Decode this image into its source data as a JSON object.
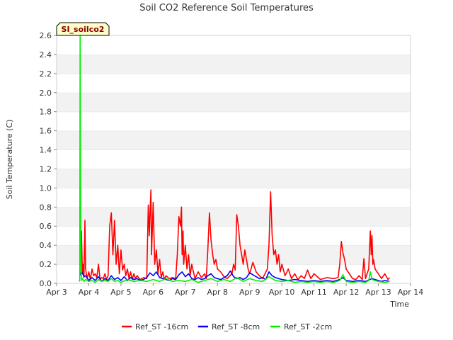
{
  "chart_data": {
    "type": "line",
    "title": "Soil CO2 Reference Soil Temperatures",
    "xlabel": "Time",
    "ylabel": "Soil Temperature (C)",
    "site_label": "SI_soilco2",
    "xlim": [
      3,
      14
    ],
    "ylim": [
      0,
      2.6
    ],
    "x_ticks": [
      {
        "v": 3,
        "label": "Apr 3"
      },
      {
        "v": 4,
        "label": "Apr 4"
      },
      {
        "v": 5,
        "label": "Apr 5"
      },
      {
        "v": 6,
        "label": "Apr 6"
      },
      {
        "v": 7,
        "label": "Apr 7"
      },
      {
        "v": 8,
        "label": "Apr 8"
      },
      {
        "v": 9,
        "label": "Apr 9"
      },
      {
        "v": 10,
        "label": "Apr 10"
      },
      {
        "v": 11,
        "label": "Apr 11"
      },
      {
        "v": 12,
        "label": "Apr 12"
      },
      {
        "v": 13,
        "label": "Apr 13"
      },
      {
        "v": 14,
        "label": "Apr 14"
      }
    ],
    "y_ticks": [
      {
        "v": 0.0,
        "label": "0.0"
      },
      {
        "v": 0.2,
        "label": "0.2"
      },
      {
        "v": 0.4,
        "label": "0.4"
      },
      {
        "v": 0.6,
        "label": "0.6"
      },
      {
        "v": 0.8,
        "label": "0.8"
      },
      {
        "v": 1.0,
        "label": "1.0"
      },
      {
        "v": 1.2,
        "label": "1.2"
      },
      {
        "v": 1.4,
        "label": "1.4"
      },
      {
        "v": 1.6,
        "label": "1.6"
      },
      {
        "v": 1.8,
        "label": "1.8"
      },
      {
        "v": 2.0,
        "label": "2.0"
      },
      {
        "v": 2.2,
        "label": "2.2"
      },
      {
        "v": 2.4,
        "label": "2.4"
      },
      {
        "v": 2.6,
        "label": "2.6"
      }
    ],
    "legend_position": "bottom-center",
    "series": [
      {
        "name": "Ref_ST -16cm",
        "color": "#ff0000",
        "x": [
          3.73,
          3.75,
          3.77,
          3.8,
          3.83,
          3.85,
          3.88,
          3.9,
          3.95,
          4.0,
          4.05,
          4.1,
          4.15,
          4.2,
          4.25,
          4.3,
          4.35,
          4.4,
          4.45,
          4.5,
          4.55,
          4.6,
          4.65,
          4.7,
          4.75,
          4.8,
          4.85,
          4.9,
          4.95,
          5.0,
          5.05,
          5.1,
          5.15,
          5.2,
          5.25,
          5.3,
          5.35,
          5.4,
          5.45,
          5.5,
          5.6,
          5.7,
          5.8,
          5.85,
          5.88,
          5.9,
          5.93,
          5.95,
          6.0,
          6.05,
          6.1,
          6.15,
          6.2,
          6.25,
          6.3,
          6.35,
          6.4,
          6.5,
          6.6,
          6.7,
          6.75,
          6.8,
          6.85,
          6.88,
          6.9,
          6.93,
          6.95,
          7.0,
          7.05,
          7.1,
          7.15,
          7.2,
          7.3,
          7.4,
          7.5,
          7.6,
          7.65,
          7.7,
          7.75,
          7.8,
          7.85,
          7.9,
          7.95,
          8.0,
          8.1,
          8.2,
          8.3,
          8.45,
          8.5,
          8.55,
          8.6,
          8.65,
          8.7,
          8.75,
          8.8,
          8.85,
          8.9,
          8.95,
          9.0,
          9.1,
          9.2,
          9.3,
          9.4,
          9.55,
          9.6,
          9.65,
          9.7,
          9.75,
          9.8,
          9.85,
          9.9,
          9.95,
          10.0,
          10.1,
          10.2,
          10.3,
          10.4,
          10.5,
          10.6,
          10.7,
          10.8,
          10.9,
          11.0,
          11.2,
          11.4,
          11.6,
          11.75,
          11.8,
          11.85,
          11.9,
          11.95,
          12.0,
          12.1,
          12.2,
          12.3,
          12.4,
          12.5,
          12.55,
          12.6,
          12.7,
          12.75,
          12.78,
          12.8,
          12.83,
          12.85,
          12.9,
          13.0,
          13.1,
          13.2,
          13.3,
          13.35
        ],
        "values": [
          0.8,
          0.3,
          0.55,
          0.1,
          0.2,
          0.06,
          0.66,
          0.15,
          0.05,
          0.12,
          0.04,
          0.15,
          0.08,
          0.1,
          0.06,
          0.2,
          0.04,
          0.06,
          0.05,
          0.1,
          0.04,
          0.08,
          0.6,
          0.74,
          0.3,
          0.66,
          0.2,
          0.4,
          0.1,
          0.35,
          0.14,
          0.2,
          0.08,
          0.15,
          0.05,
          0.12,
          0.04,
          0.1,
          0.05,
          0.08,
          0.04,
          0.06,
          0.05,
          0.82,
          0.5,
          0.7,
          0.98,
          0.3,
          0.85,
          0.2,
          0.35,
          0.1,
          0.25,
          0.06,
          0.12,
          0.04,
          0.08,
          0.05,
          0.06,
          0.05,
          0.3,
          0.7,
          0.6,
          0.8,
          0.3,
          0.55,
          0.2,
          0.4,
          0.15,
          0.3,
          0.08,
          0.2,
          0.05,
          0.12,
          0.06,
          0.1,
          0.05,
          0.35,
          0.74,
          0.45,
          0.3,
          0.2,
          0.25,
          0.15,
          0.12,
          0.07,
          0.05,
          0.1,
          0.2,
          0.14,
          0.72,
          0.6,
          0.4,
          0.3,
          0.2,
          0.35,
          0.25,
          0.15,
          0.1,
          0.22,
          0.12,
          0.08,
          0.05,
          0.15,
          0.4,
          0.96,
          0.5,
          0.3,
          0.35,
          0.2,
          0.3,
          0.12,
          0.2,
          0.08,
          0.15,
          0.05,
          0.1,
          0.04,
          0.08,
          0.05,
          0.14,
          0.05,
          0.1,
          0.04,
          0.06,
          0.05,
          0.06,
          0.2,
          0.44,
          0.32,
          0.25,
          0.15,
          0.1,
          0.05,
          0.04,
          0.08,
          0.04,
          0.26,
          0.05,
          0.15,
          0.55,
          0.3,
          0.5,
          0.2,
          0.25,
          0.15,
          0.1,
          0.05,
          0.1,
          0.04,
          0.06
        ]
      },
      {
        "name": "Ref_ST -8cm",
        "color": "#0000ff",
        "x": [
          3.73,
          3.75,
          3.8,
          3.85,
          3.9,
          4.0,
          4.1,
          4.2,
          4.3,
          4.4,
          4.5,
          4.6,
          4.7,
          4.8,
          4.9,
          5.0,
          5.1,
          5.2,
          5.3,
          5.4,
          5.5,
          5.6,
          5.7,
          5.8,
          5.9,
          6.0,
          6.1,
          6.2,
          6.3,
          6.4,
          6.5,
          6.6,
          6.7,
          6.8,
          6.9,
          7.0,
          7.1,
          7.2,
          7.3,
          7.4,
          7.5,
          7.6,
          7.7,
          7.8,
          7.9,
          8.0,
          8.1,
          8.2,
          8.3,
          8.4,
          8.5,
          8.6,
          8.7,
          8.8,
          8.9,
          9.0,
          9.1,
          9.2,
          9.3,
          9.4,
          9.5,
          9.6,
          9.7,
          9.8,
          9.9,
          10.0,
          10.2,
          10.4,
          10.6,
          10.8,
          11.0,
          11.2,
          11.4,
          11.6,
          11.8,
          11.9,
          12.0,
          12.2,
          12.4,
          12.6,
          12.8,
          12.9,
          13.0,
          13.1,
          13.2,
          13.35
        ],
        "values": [
          0.12,
          0.09,
          0.11,
          0.07,
          0.08,
          0.03,
          0.06,
          0.03,
          0.07,
          0.02,
          0.05,
          0.03,
          0.08,
          0.04,
          0.06,
          0.03,
          0.07,
          0.03,
          0.06,
          0.04,
          0.05,
          0.03,
          0.04,
          0.06,
          0.11,
          0.08,
          0.12,
          0.06,
          0.05,
          0.04,
          0.03,
          0.05,
          0.04,
          0.09,
          0.12,
          0.07,
          0.1,
          0.05,
          0.04,
          0.06,
          0.04,
          0.05,
          0.08,
          0.1,
          0.06,
          0.05,
          0.04,
          0.06,
          0.08,
          0.13,
          0.07,
          0.05,
          0.06,
          0.04,
          0.06,
          0.11,
          0.09,
          0.07,
          0.05,
          0.06,
          0.04,
          0.12,
          0.08,
          0.06,
          0.05,
          0.04,
          0.03,
          0.04,
          0.03,
          0.02,
          0.03,
          0.02,
          0.03,
          0.02,
          0.04,
          0.06,
          0.03,
          0.02,
          0.03,
          0.02,
          0.05,
          0.04,
          0.03,
          0.02,
          0.03,
          0.02
        ]
      },
      {
        "name": "Ref_ST -2cm",
        "color": "#00ee00",
        "x": [
          3.7,
          3.72,
          3.73,
          3.74,
          3.75,
          3.76,
          3.78,
          3.8,
          3.85,
          3.9,
          4.0,
          4.1,
          4.2,
          4.3,
          4.4,
          4.5,
          4.6,
          4.7,
          4.8,
          4.9,
          5.0,
          5.2,
          5.4,
          5.6,
          5.8,
          6.0,
          6.2,
          6.4,
          6.6,
          6.8,
          7.0,
          7.2,
          7.4,
          7.6,
          7.8,
          8.0,
          8.2,
          8.4,
          8.6,
          8.8,
          9.0,
          9.2,
          9.4,
          9.6,
          9.8,
          10.0,
          10.2,
          10.4,
          10.6,
          10.8,
          11.0,
          11.2,
          11.4,
          11.6,
          11.8,
          11.9,
          12.0,
          12.2,
          12.4,
          12.6,
          12.7,
          12.75,
          12.8,
          13.0,
          13.2,
          13.35
        ],
        "values": [
          0.02,
          0.03,
          2.6,
          1.5,
          0.5,
          0.12,
          0.03,
          0.05,
          0.02,
          0.04,
          0.02,
          0.03,
          0.01,
          0.04,
          0.02,
          0.03,
          0.02,
          0.05,
          0.02,
          0.03,
          0.01,
          0.04,
          0.02,
          0.03,
          0.02,
          0.04,
          0.02,
          0.05,
          0.02,
          0.03,
          0.02,
          0.04,
          0.01,
          0.03,
          0.05,
          0.02,
          0.04,
          0.02,
          0.06,
          0.02,
          0.05,
          0.03,
          0.02,
          0.07,
          0.03,
          0.02,
          0.03,
          0.01,
          0.02,
          0.01,
          0.02,
          0.01,
          0.02,
          0.01,
          0.03,
          0.09,
          0.02,
          0.01,
          0.02,
          0.01,
          0.03,
          0.12,
          0.04,
          0.02,
          0.01,
          0.02
        ]
      }
    ]
  }
}
